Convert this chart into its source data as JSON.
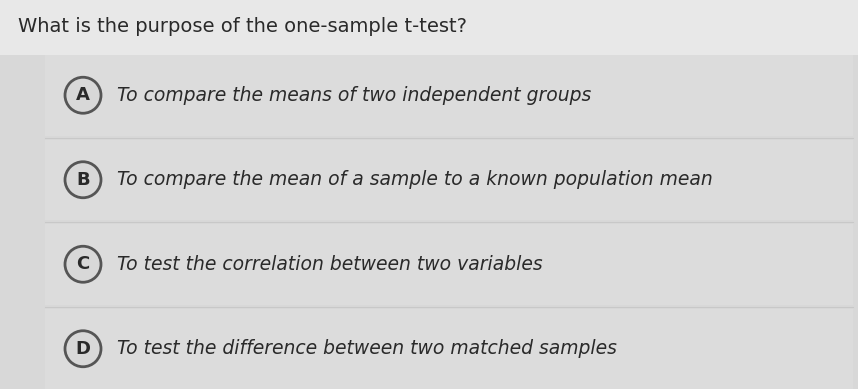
{
  "title": "What is the purpose of the one-sample t-test?",
  "title_fontsize": 14,
  "title_color": "#2a2a2a",
  "bg_top_color": "#e8e8e8",
  "bg_options_color": "#d8d8d8",
  "option_row_color": "#d0d0d0",
  "option_row_light_color": "#dcdcdc",
  "separator_color": "#c8c8c8",
  "options": [
    {
      "label": "A",
      "text": "To compare the means of two independent groups"
    },
    {
      "label": "B",
      "text": "To compare the mean of a sample to a known population mean"
    },
    {
      "label": "C",
      "text": "To test the correlation between two variables"
    },
    {
      "label": "D",
      "text": "To test the difference between two matched samples"
    }
  ],
  "option_text_fontsize": 13.5,
  "option_text_color": "#2a2a2a",
  "label_fontsize": 13,
  "label_color": "#2a2a2a",
  "circle_edge_color": "#555555",
  "circle_face_color": "#d8d8d8",
  "figwidth": 8.58,
  "figheight": 3.89,
  "dpi": 100
}
